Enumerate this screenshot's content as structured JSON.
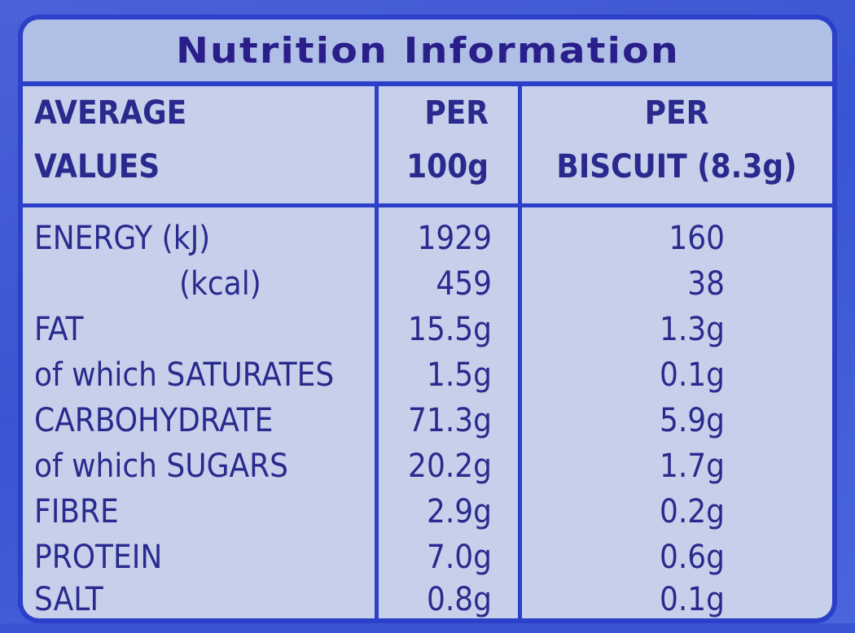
{
  "title": "Nutrition Information",
  "header": {
    "col1": [
      "AVERAGE",
      "VALUES"
    ],
    "col2": [
      "PER",
      "100g"
    ],
    "col3": [
      "PER",
      "BISCUIT (8.3g)"
    ]
  },
  "rows": [
    {
      "label": "ENERGY (kJ)",
      "per100": "1929",
      "perBiscuit": "160"
    },
    {
      "label": "(kcal)",
      "per100": "459",
      "perBiscuit": "38"
    },
    {
      "label": "FAT",
      "per100": "15.5g",
      "perBiscuit": "1.3g"
    },
    {
      "label": "of which SATURATES",
      "per100": "1.5g",
      "perBiscuit": "0.1g"
    },
    {
      "label": "CARBOHYDRATE",
      "per100": "71.3g",
      "perBiscuit": "5.9g"
    },
    {
      "label": "of which SUGARS",
      "per100": "20.2g",
      "perBiscuit": "1.7g"
    },
    {
      "label": "FIBRE",
      "per100": "2.9g",
      "perBiscuit": "0.2g"
    },
    {
      "label": "PROTEIN",
      "per100": "7.0g",
      "perBiscuit": "0.6g"
    },
    {
      "label": "SALT",
      "per100": "0.8g",
      "perBiscuit": "0.1g"
    }
  ],
  "colors": {
    "text": "#2a2a8e",
    "border": "#2b3fc8",
    "panel": "#c6d0ea",
    "background": "#3a55d2"
  }
}
